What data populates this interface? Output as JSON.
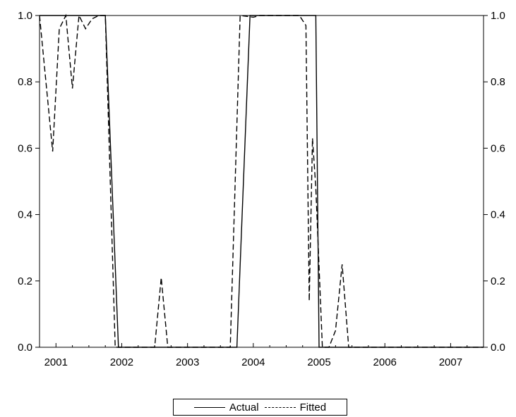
{
  "chart_data": {
    "type": "line",
    "x_axis": {
      "min": 2000.75,
      "max": 2007.5,
      "tick_labels": [
        "2001",
        "2002",
        "2003",
        "2004",
        "2005",
        "2006",
        "2007"
      ],
      "label_positions": [
        2001.0,
        2002.0,
        2003.0,
        2004.0,
        2005.0,
        2006.0,
        2007.0
      ]
    },
    "y_axis": {
      "min": 0,
      "max": 1.0,
      "ticks": [
        0.0,
        0.2,
        0.4,
        0.6,
        0.8,
        1.0
      ],
      "tick_labels": [
        "0.0",
        "0.2",
        "0.4",
        "0.6",
        "0.8",
        "1.0"
      ],
      "mirrored_right": true
    },
    "grid": false,
    "legend_position": "bottom-center",
    "series": [
      {
        "name": "Actual",
        "style": "solid",
        "color": "#000000",
        "x": [
          2000.75,
          2001.75,
          2001.95,
          2003.75,
          2003.95,
          2004.95,
          2005.0,
          2007.5
        ],
        "y": [
          1,
          1,
          0,
          0,
          1,
          1,
          0,
          0
        ]
      },
      {
        "name": "Fitted",
        "style": "dashed",
        "color": "#000000",
        "x": [
          2000.75,
          2000.95,
          2001.05,
          2001.15,
          2001.25,
          2001.35,
          2001.45,
          2001.55,
          2001.65,
          2001.75,
          2001.9,
          2002.5,
          2002.6,
          2002.7,
          2003.65,
          2003.8,
          2004.0,
          2004.1,
          2004.2,
          2004.3,
          2004.4,
          2004.5,
          2004.7,
          2004.8,
          2004.85,
          2004.9,
          2004.95,
          2005.05,
          2005.15,
          2005.25,
          2005.35,
          2005.45,
          2005.55,
          2005.65,
          2007.5
        ],
        "y": [
          1.0,
          0.59,
          0.96,
          1.0,
          0.78,
          1.0,
          0.96,
          0.99,
          1.0,
          1.0,
          0.0,
          0.0,
          0.21,
          0.0,
          0.0,
          1.0,
          0.995,
          1.0,
          1.0,
          1.0,
          1.0,
          1.0,
          1.0,
          0.97,
          0.14,
          0.63,
          0.48,
          0.0,
          0.0,
          0.05,
          0.25,
          0.0,
          0.0,
          0.0,
          0.0
        ]
      }
    ]
  }
}
